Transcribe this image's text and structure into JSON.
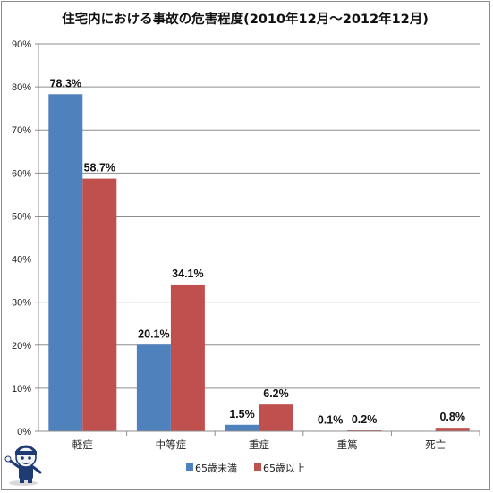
{
  "chart_data": {
    "type": "bar",
    "title": "住宅内における事故の危害程度(2010年12月～2012年12月)",
    "categories": [
      "軽症",
      "中等症",
      "重症",
      "重篤",
      "死亡"
    ],
    "series": [
      {
        "name": "65歳未満",
        "color": "#4f81bd",
        "values": [
          78.3,
          20.1,
          1.5,
          0.1,
          0.0
        ],
        "labels": [
          "78.3%",
          "20.1%",
          "1.5%",
          "0.1%",
          ""
        ]
      },
      {
        "name": "65歳以上",
        "color": "#c0504d",
        "values": [
          58.7,
          34.1,
          6.2,
          0.2,
          0.8
        ],
        "labels": [
          "58.7%",
          "34.1%",
          "6.2%",
          "0.2%",
          "0.8%"
        ]
      }
    ],
    "y_ticks": [
      "0%",
      "10%",
      "20%",
      "30%",
      "40%",
      "50%",
      "60%",
      "70%",
      "80%",
      "90%"
    ],
    "ylim": [
      0,
      90
    ],
    "grid": true,
    "legend_position": "bottom"
  },
  "watermark": {
    "icon": "cartoon-character-logo"
  }
}
